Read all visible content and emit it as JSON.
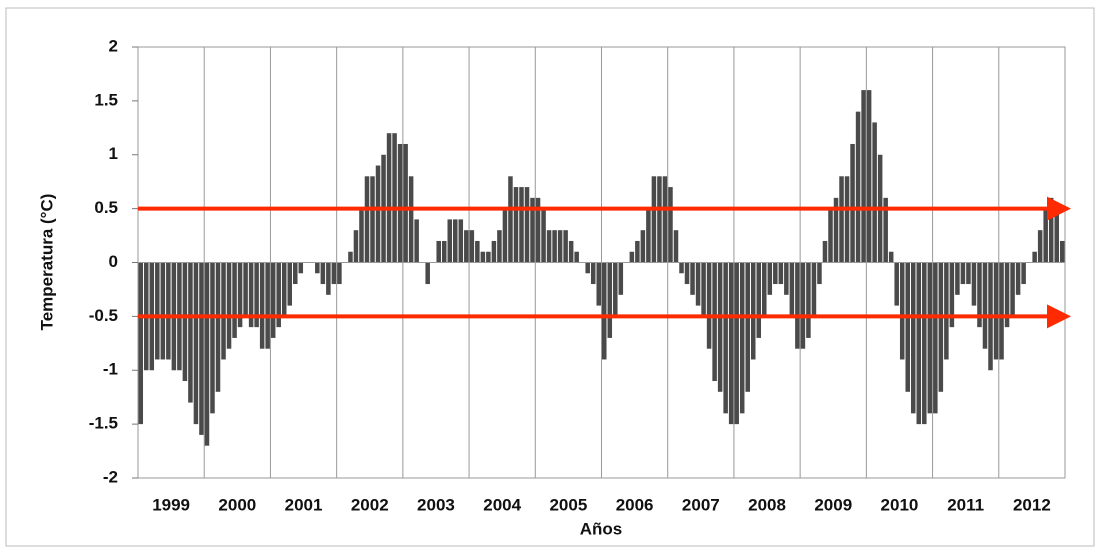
{
  "chart_data": {
    "type": "bar",
    "y_label": "Temperatura (°C)",
    "x_label": "Años",
    "categories": [
      "1999",
      "2000",
      "2001",
      "2002",
      "2003",
      "2004",
      "2005",
      "2006",
      "2007",
      "2008",
      "2009",
      "2010",
      "2011",
      "2012"
    ],
    "values": [
      [
        -1.5,
        -1.0,
        -1.0,
        -0.9,
        -0.9,
        -0.9,
        -1.0,
        -1.0,
        -1.1,
        -1.3,
        -1.5,
        -1.6
      ],
      [
        -1.7,
        -1.4,
        -1.2,
        -0.9,
        -0.8,
        -0.7,
        -0.6,
        -0.5,
        -0.6,
        -0.6,
        -0.8,
        -0.8
      ],
      [
        -0.7,
        -0.6,
        -0.5,
        -0.4,
        -0.2,
        -0.1,
        0.0,
        0.0,
        -0.1,
        -0.2,
        -0.3,
        -0.2
      ],
      [
        -0.2,
        0.0,
        0.1,
        0.3,
        0.5,
        0.8,
        0.8,
        0.9,
        1.0,
        1.2,
        1.2,
        1.1
      ],
      [
        1.1,
        0.8,
        0.4,
        0.0,
        -0.2,
        0.0,
        0.2,
        0.2,
        0.4,
        0.4,
        0.4,
        0.3
      ],
      [
        0.3,
        0.2,
        0.1,
        0.1,
        0.2,
        0.3,
        0.5,
        0.8,
        0.7,
        0.7,
        0.7,
        0.6
      ],
      [
        0.6,
        0.5,
        0.3,
        0.3,
        0.3,
        0.3,
        0.2,
        0.1,
        0.0,
        -0.1,
        -0.2,
        -0.4
      ],
      [
        -0.9,
        -0.7,
        -0.5,
        -0.3,
        0.0,
        0.1,
        0.2,
        0.3,
        0.5,
        0.8,
        0.8,
        0.8
      ],
      [
        0.7,
        0.3,
        -0.1,
        -0.2,
        -0.3,
        -0.4,
        -0.5,
        -0.8,
        -1.1,
        -1.2,
        -1.4,
        -1.5
      ],
      [
        -1.5,
        -1.4,
        -1.2,
        -0.9,
        -0.7,
        -0.5,
        -0.3,
        -0.2,
        -0.2,
        -0.3,
        -0.5,
        -0.8
      ],
      [
        -0.8,
        -0.7,
        -0.5,
        -0.2,
        0.2,
        0.5,
        0.6,
        0.8,
        0.8,
        1.1,
        1.4,
        1.6
      ],
      [
        1.6,
        1.3,
        1.0,
        0.6,
        0.1,
        -0.4,
        -0.9,
        -1.2,
        -1.4,
        -1.5,
        -1.5,
        -1.4
      ],
      [
        -1.4,
        -1.2,
        -0.9,
        -0.6,
        -0.3,
        -0.2,
        -0.2,
        -0.4,
        -0.6,
        -0.8,
        -1.0,
        -0.9
      ],
      [
        -0.9,
        -0.6,
        -0.5,
        -0.3,
        -0.2,
        0.0,
        0.1,
        0.3,
        0.5,
        0.6,
        0.5,
        0.2
      ]
    ],
    "color": "#4a4a4a",
    "ylim": [
      -2,
      2
    ],
    "yticks": [
      -2,
      -1.5,
      -1,
      -0.5,
      0,
      0.5,
      1,
      1.5,
      2
    ],
    "reference_lines": [
      {
        "value": 0.5,
        "color": "#ff2a00"
      },
      {
        "value": -0.5,
        "color": "#ff2a00"
      }
    ],
    "grid": true
  }
}
